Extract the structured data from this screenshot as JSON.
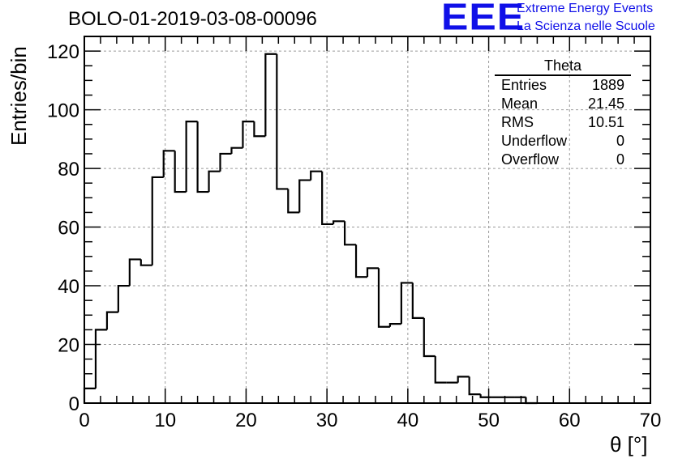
{
  "title": "BOLO-01-2019-03-08-00096",
  "logo": {
    "mark": "EEE",
    "line1": "Extreme Energy Events",
    "line2": "La Scienza nelle Scuole",
    "color": "#1010e8"
  },
  "stats": {
    "title": "Theta",
    "rows": [
      {
        "label": "Entries",
        "value": "1889"
      },
      {
        "label": "Mean",
        "value": "21.45"
      },
      {
        "label": "RMS",
        "value": "10.51"
      },
      {
        "label": "Underflow",
        "value": "0"
      },
      {
        "label": "Overflow",
        "value": "0"
      }
    ]
  },
  "chart_data": {
    "type": "bar",
    "histogram": true,
    "title": "BOLO-01-2019-03-08-00096",
    "xlabel": "θ [°]",
    "ylabel": "Entries/bin",
    "xlim": [
      0,
      70
    ],
    "ylim": [
      0,
      125
    ],
    "xticks": [
      0,
      10,
      20,
      30,
      40,
      50,
      60,
      70
    ],
    "yticks": [
      0,
      20,
      40,
      60,
      80,
      100,
      120
    ],
    "grid": true,
    "bin_edges_start": 0,
    "bin_width": 1.4,
    "values": [
      5,
      25,
      31,
      40,
      49,
      47,
      77,
      86,
      72,
      96,
      72,
      79,
      85,
      87,
      96,
      91,
      119,
      73,
      65,
      76,
      79,
      61,
      62,
      54,
      43,
      46,
      26,
      27,
      41,
      29,
      16,
      7,
      7,
      9,
      3,
      2,
      2,
      2,
      2,
      0,
      0,
      0,
      0,
      0,
      0,
      0,
      0,
      0,
      0,
      0
    ]
  }
}
